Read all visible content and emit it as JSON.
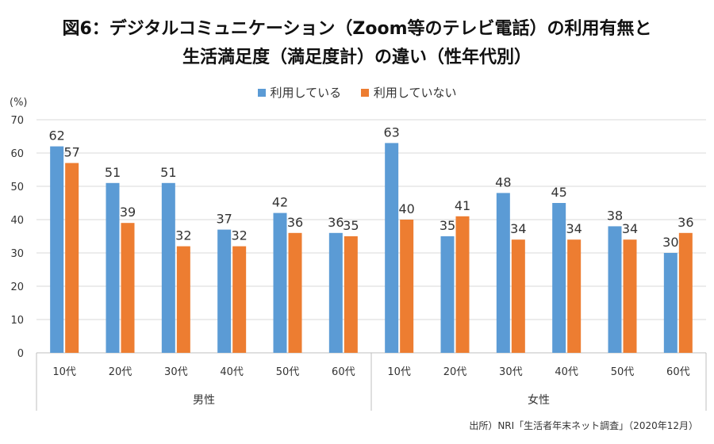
{
  "title_line1": "図6：デジタルコミュニケーション（Zoom等のテレビ電話）の利用有無と",
  "title_line2": "生活満足度（満足度計）の違い（性年代別）",
  "y_unit": "(%)",
  "source": "出所）NRI「生活者年末ネット調査」（2020年12月）",
  "colors": {
    "using": "#5b9bd5",
    "not_using": "#ed7d31",
    "grid": "#d9d9d9",
    "axis": "#bfbfbf"
  },
  "chart_data": {
    "type": "bar",
    "ylim": [
      0,
      70
    ],
    "yticks": [
      0,
      10,
      20,
      30,
      40,
      50,
      60,
      70
    ],
    "grid": true,
    "legend_position": "top",
    "groups": [
      "男性",
      "女性"
    ],
    "categories": [
      "10代",
      "20代",
      "30代",
      "40代",
      "50代",
      "60代",
      "10代",
      "20代",
      "30代",
      "40代",
      "50代",
      "60代"
    ],
    "series": [
      {
        "name": "利用している",
        "values": [
          62,
          51,
          51,
          37,
          42,
          36,
          63,
          35,
          48,
          45,
          38,
          30
        ]
      },
      {
        "name": "利用していない",
        "values": [
          57,
          39,
          32,
          32,
          36,
          35,
          40,
          41,
          34,
          34,
          34,
          36
        ]
      }
    ]
  }
}
